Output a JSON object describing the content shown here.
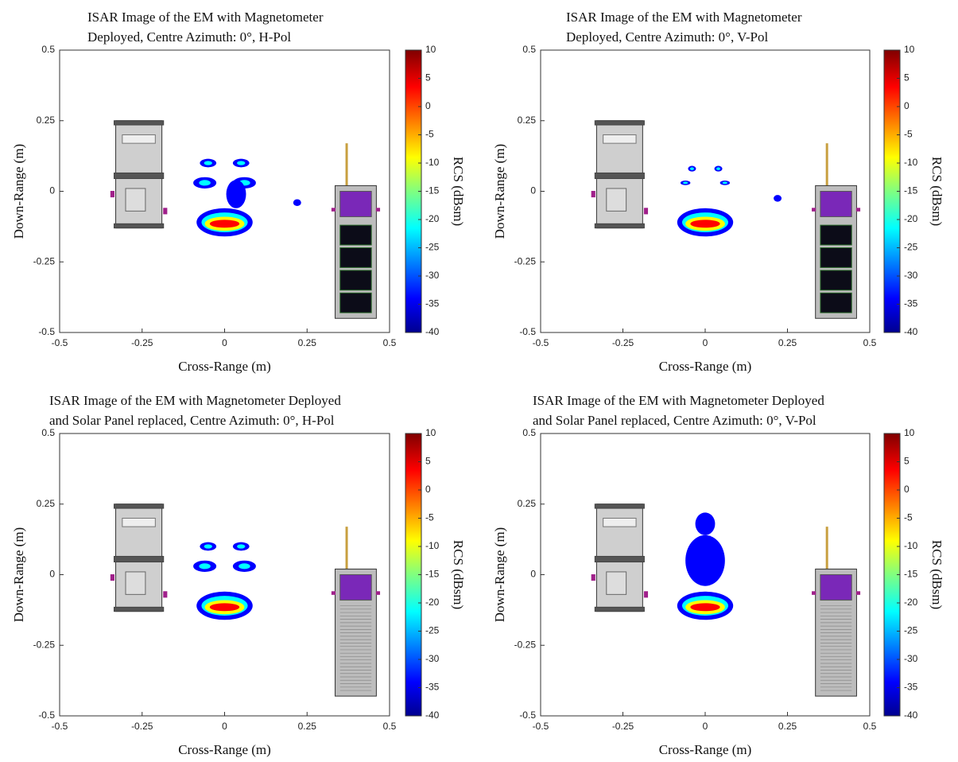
{
  "chart_data": [
    {
      "type": "image",
      "title": [
        "ISAR Image of the EM with Magnetometer",
        "Deployed, Centre Azimuth: 0°, H-Pol"
      ],
      "x_label": "Cross-Range (m)",
      "y_label": "Down-Range (m)",
      "xlim": [
        -0.5,
        0.5
      ],
      "xticks": [
        -0.5,
        -0.25,
        0,
        0.25,
        0.5
      ],
      "ylim": [
        -0.5,
        0.5
      ],
      "yticks": [
        -0.5,
        -0.25,
        0,
        0.25,
        0.5
      ],
      "colorbar": {
        "label": "RCS (dBsm)",
        "colormap": "jet",
        "lim": [
          -40,
          10
        ],
        "ticks": [
          -40,
          -35,
          -30,
          -25,
          -20,
          -15,
          -10,
          -5,
          0,
          5,
          10
        ]
      }
    },
    {
      "type": "image",
      "title": [
        "ISAR Image of the EM with Magnetometer",
        "Deployed, Centre Azimuth: 0°, V-Pol"
      ],
      "x_label": "Cross-Range (m)",
      "y_label": "Down-Range (m)",
      "xlim": [
        -0.5,
        0.5
      ],
      "xticks": [
        -0.5,
        -0.25,
        0,
        0.25,
        0.5
      ],
      "ylim": [
        -0.5,
        0.5
      ],
      "yticks": [
        -0.5,
        -0.25,
        0,
        0.25,
        0.5
      ],
      "colorbar": {
        "label": "RCS (dBsm)",
        "colormap": "jet",
        "lim": [
          -40,
          10
        ],
        "ticks": [
          -40,
          -35,
          -30,
          -25,
          -20,
          -15,
          -10,
          -5,
          0,
          5,
          10
        ]
      }
    },
    {
      "type": "image",
      "title": [
        "ISAR Image of the EM with Magnetometer Deployed",
        "and Solar Panel replaced, Centre Azimuth: 0°, H-Pol"
      ],
      "x_label": "Cross-Range (m)",
      "y_label": "Down-Range (m)",
      "xlim": [
        -0.5,
        0.5
      ],
      "xticks": [
        -0.5,
        -0.25,
        0,
        0.25,
        0.5
      ],
      "ylim": [
        -0.5,
        0.5
      ],
      "yticks": [
        -0.5,
        -0.25,
        0,
        0.25,
        0.5
      ],
      "colorbar": {
        "label": "RCS (dBsm)",
        "colormap": "jet",
        "lim": [
          -40,
          10
        ],
        "ticks": [
          -40,
          -35,
          -30,
          -25,
          -20,
          -15,
          -10,
          -5,
          0,
          5,
          10
        ]
      }
    },
    {
      "type": "image",
      "title": [
        "ISAR Image of the EM with Magnetometer Deployed",
        "and Solar Panel replaced, Centre Azimuth: 0°, V-Pol"
      ],
      "x_label": "Cross-Range (m)",
      "y_label": "Down-Range (m)",
      "xlim": [
        -0.5,
        0.5
      ],
      "xticks": [
        -0.5,
        -0.25,
        0,
        0.25,
        0.5
      ],
      "ylim": [
        -0.5,
        0.5
      ],
      "yticks": [
        -0.5,
        -0.25,
        0,
        0.25,
        0.5
      ],
      "colorbar": {
        "label": "RCS (dBsm)",
        "colormap": "jet",
        "lim": [
          -40,
          10
        ],
        "ticks": [
          -40,
          -35,
          -30,
          -25,
          -20,
          -15,
          -10,
          -5,
          0,
          5,
          10
        ]
      }
    }
  ]
}
